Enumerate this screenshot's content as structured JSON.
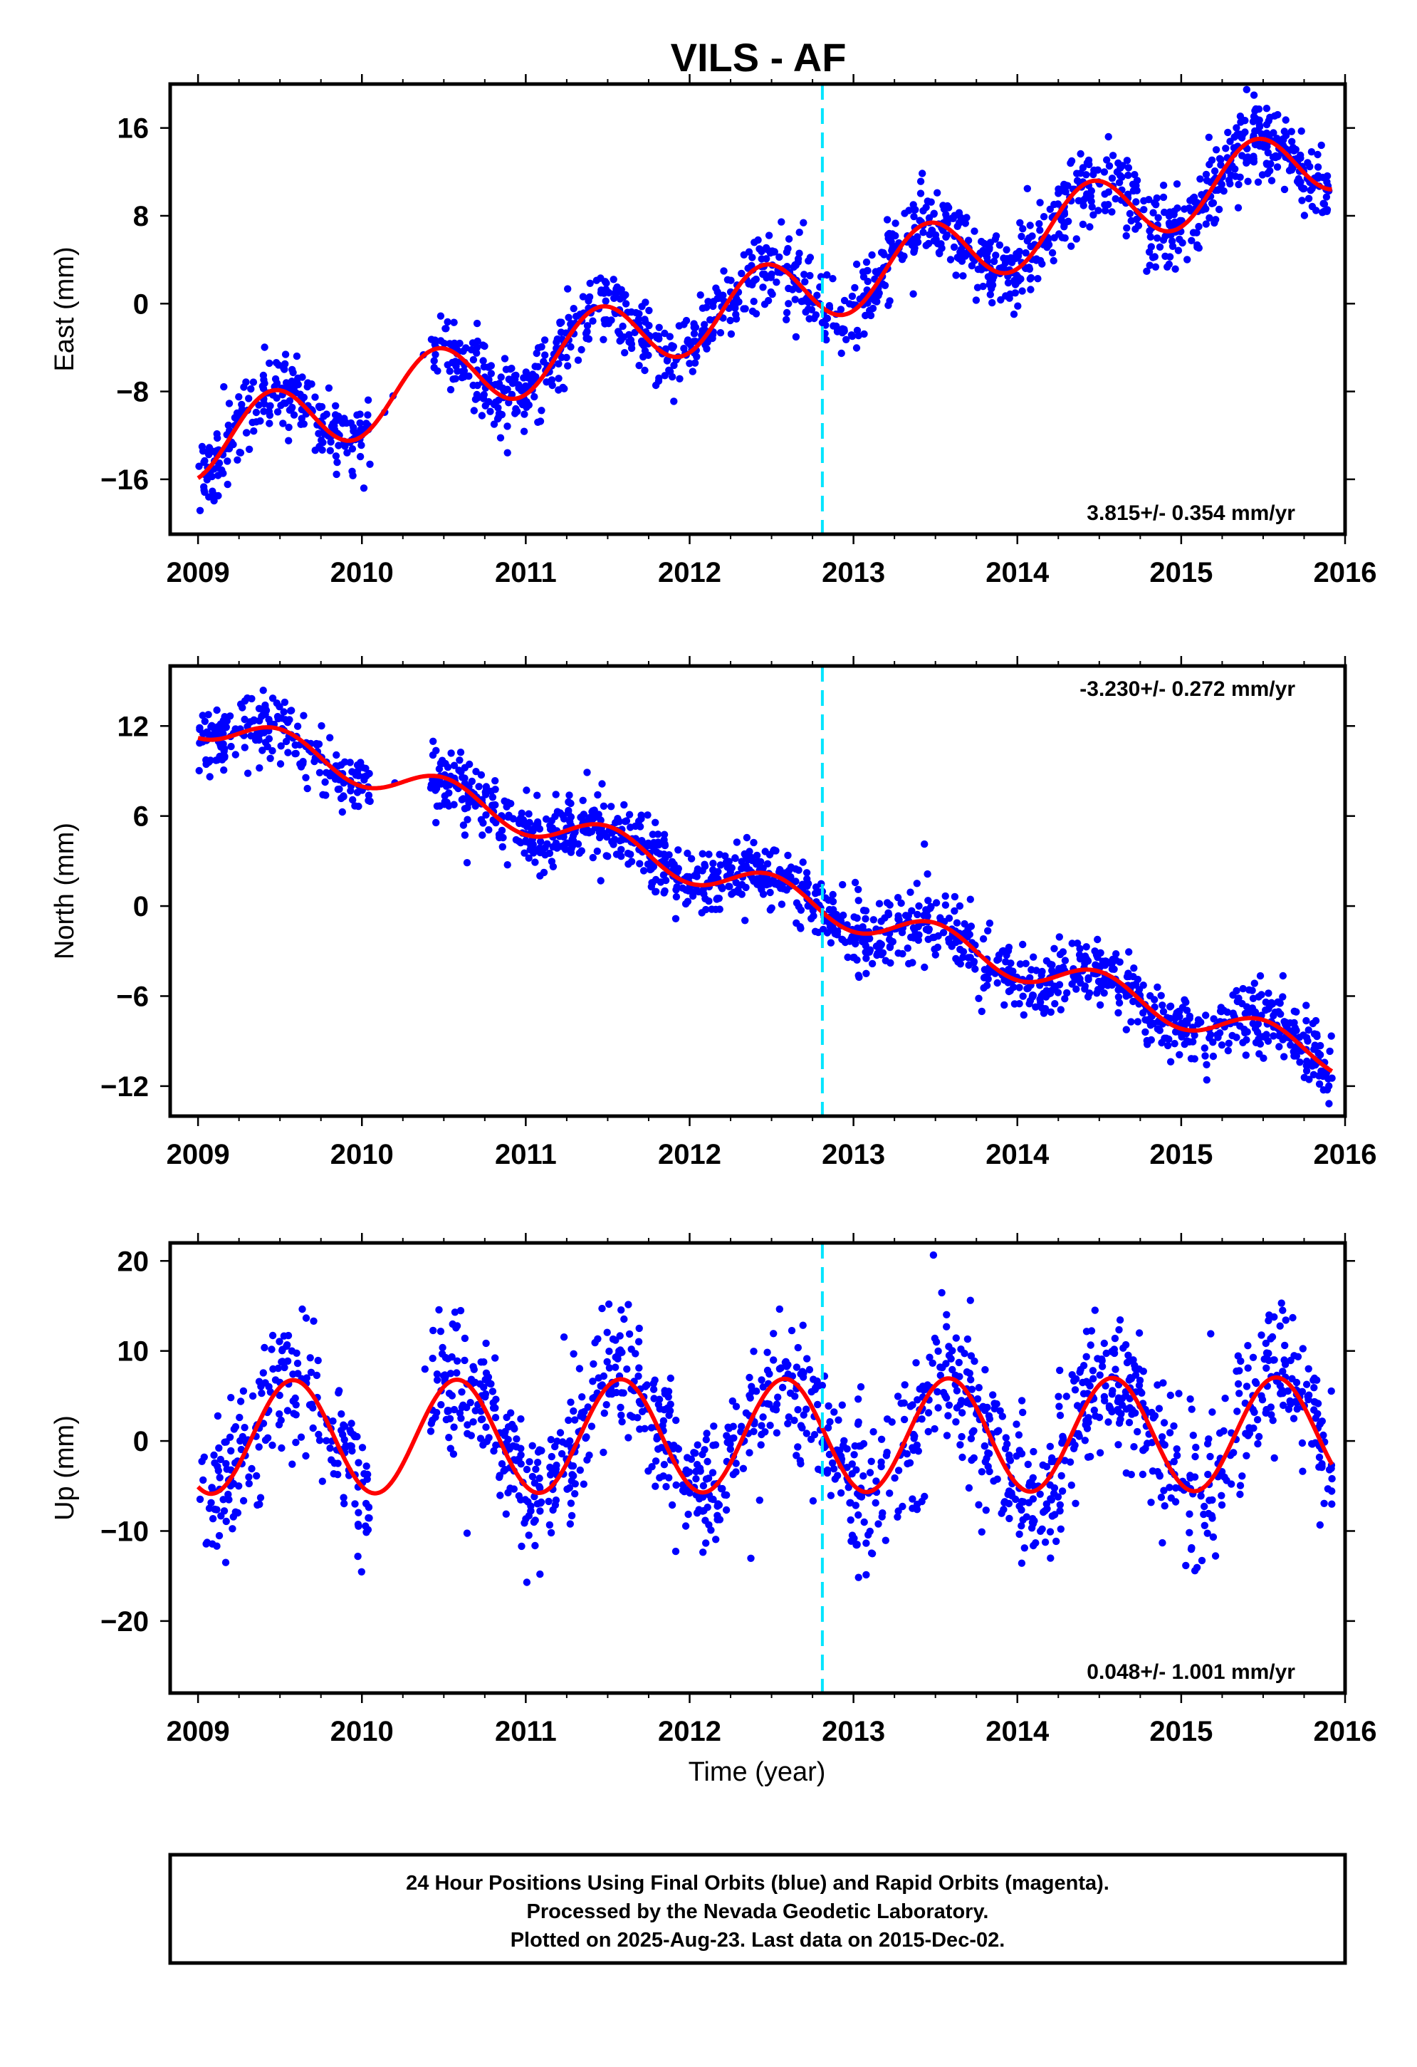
{
  "title": "VILS - AF",
  "x_axis_label": "Time (year)",
  "footer": [
    "24 Hour Positions Using Final Orbits (blue) and Rapid Orbits (magenta).",
    "Processed by the Nevada Geodetic Laboratory.",
    "Plotted on 2025-Aug-23. Last data on 2015-Dec-02."
  ],
  "colors": {
    "points": "#0000ff",
    "model": "#ff0000",
    "event_line": "#00e5ff"
  },
  "chart_data": [
    {
      "type": "scatter",
      "component": "East",
      "ylabel": "East (mm)",
      "xlim": [
        2008.83,
        2016.0
      ],
      "ylim": [
        -21,
        20
      ],
      "xticks": [
        2009,
        2010,
        2011,
        2012,
        2013,
        2014,
        2015,
        2016
      ],
      "yticks": [
        -16,
        -8,
        0,
        8,
        16
      ],
      "ytick_labels": [
        "−16",
        "−8",
        "0",
        "8",
        "16"
      ],
      "rate_text": "3.815+/- 0.354 mm/yr",
      "rate_position": "bottom-right",
      "event_x": 2012.81,
      "model": {
        "rate": 3.815,
        "offset_2012_5": 0.5,
        "annual_amp": 3.2,
        "annual_peak_year_fraction": 0.45,
        "semiannual_amp": 0.0
      },
      "series": [
        {
          "name": "24 Hour Positions",
          "x_range": [
            2009.0,
            2015.92
          ],
          "scatter_sd": 1.7
        }
      ]
    },
    {
      "type": "scatter",
      "component": "North",
      "ylabel": "North (mm)",
      "xlim": [
        2008.83,
        2016.0
      ],
      "ylim": [
        -14,
        16
      ],
      "xticks": [
        2009,
        2010,
        2011,
        2012,
        2013,
        2014,
        2015,
        2016
      ],
      "yticks": [
        -12,
        -6,
        0,
        6,
        12
      ],
      "ytick_labels": [
        "−12",
        "−6",
        "0",
        "6",
        "12"
      ],
      "rate_text": "-3.230+/- 0.272 mm/yr",
      "rate_position": "top-right",
      "event_x": 2012.81,
      "model": {
        "rate": -3.23,
        "offset_2012_5": 1.0,
        "annual_amp": 1.1,
        "annual_peak_year_fraction": 0.5,
        "semiannual_amp": 0.0
      },
      "series": [
        {
          "name": "24 Hour Positions",
          "x_range": [
            2009.0,
            2015.92
          ],
          "scatter_sd": 1.1
        }
      ]
    },
    {
      "type": "scatter",
      "component": "Up",
      "ylabel": "Up (mm)",
      "xlim": [
        2008.83,
        2016.0
      ],
      "ylim": [
        -28,
        22
      ],
      "xticks": [
        2009,
        2010,
        2011,
        2012,
        2013,
        2014,
        2015,
        2016
      ],
      "yticks": [
        -20,
        -10,
        0,
        10,
        20
      ],
      "ytick_labels": [
        "−20",
        "−10",
        "0",
        "10",
        "20"
      ],
      "rate_text": "0.048+/- 1.001 mm/yr",
      "rate_position": "bottom-right",
      "event_x": 2012.81,
      "model": {
        "rate": 0.048,
        "offset_2012_5": 0.6,
        "annual_amp": 6.3,
        "annual_peak_year_fraction": 0.58,
        "semiannual_amp": 0.0
      },
      "series": [
        {
          "name": "24 Hour Positions",
          "x_range": [
            2009.0,
            2015.92
          ],
          "scatter_sd": 3.8
        }
      ]
    }
  ]
}
